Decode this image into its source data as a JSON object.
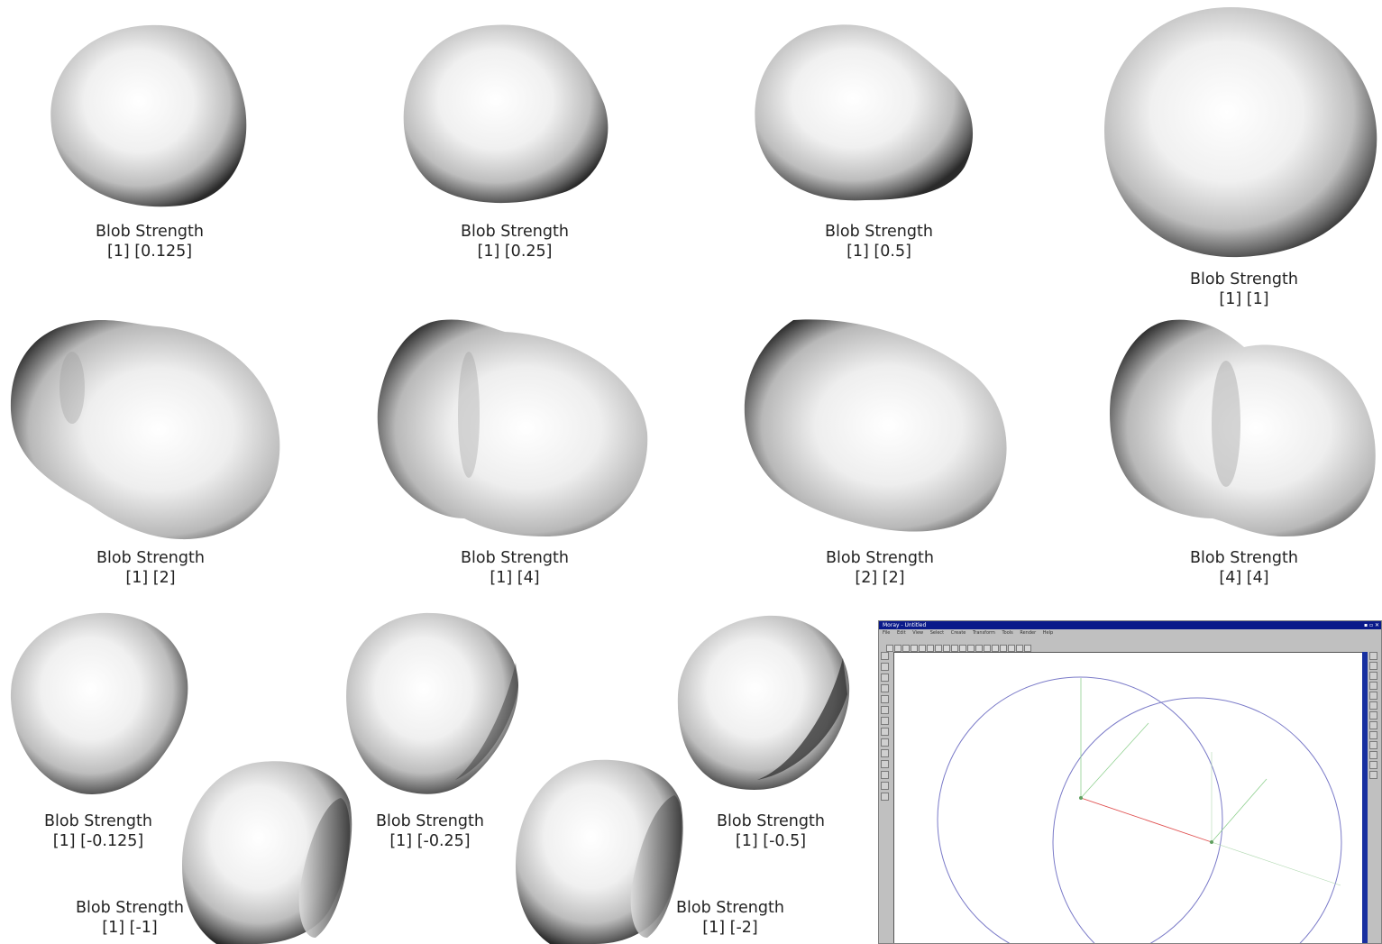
{
  "captions": [
    {
      "title": "Blob Strength",
      "values": "[1] [0.125]"
    },
    {
      "title": "Blob Strength",
      "values": "[1] [0.25]"
    },
    {
      "title": "Blob Strength",
      "values": "[1] [0.5]"
    },
    {
      "title": "Blob Strength",
      "values": "[1] [1]"
    },
    {
      "title": "Blob Strength",
      "values": "[1] [2]"
    },
    {
      "title": "Blob Strength",
      "values": "[1] [4]"
    },
    {
      "title": "Blob Strength",
      "values": "[2] [2]"
    },
    {
      "title": "Blob Strength",
      "values": "[4] [4]"
    },
    {
      "title": "Blob Strength",
      "values": "[1] [-0.125]"
    },
    {
      "title": "Blob Strength",
      "values": "[1] [-0.25]"
    },
    {
      "title": "Blob Strength",
      "values": "[1] [-0.5]"
    },
    {
      "title": "Blob Strength",
      "values": "[1] [-1]"
    },
    {
      "title": "Blob Strength",
      "values": "[1] [-2]"
    }
  ],
  "modeler_window": {
    "title": "Moray - Untitled",
    "menu": [
      "File",
      "Edit",
      "View",
      "Select",
      "Create",
      "Transform",
      "Tools",
      "Render",
      "Help"
    ],
    "colors": {
      "titlebar": "#0a1a8a",
      "circle": "#7a7ac8",
      "axis_red": "#e05050",
      "axis_green": "#70c070",
      "axis_blue": "#8080e0"
    }
  }
}
